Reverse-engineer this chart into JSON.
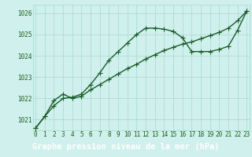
{
  "title": "Graphe pression niveau de la mer (hPa)",
  "background_color": "#cff0ec",
  "grid_color": "#a8d8cc",
  "line_color": "#1a5c2a",
  "xlim": [
    -0.3,
    23.3
  ],
  "ylim": [
    1020.5,
    1026.4
  ],
  "xticks": [
    0,
    1,
    2,
    3,
    4,
    5,
    6,
    7,
    8,
    9,
    10,
    11,
    12,
    13,
    14,
    15,
    16,
    17,
    18,
    19,
    20,
    21,
    22,
    23
  ],
  "yticks": [
    1021,
    1022,
    1023,
    1024,
    1025,
    1026
  ],
  "series1_x": [
    0,
    1,
    2,
    3,
    4,
    5,
    6,
    7,
    8,
    9,
    10,
    11,
    12,
    13,
    14,
    15,
    16,
    17,
    18,
    19,
    20,
    21,
    22,
    23
  ],
  "series1_y": [
    1020.6,
    1021.15,
    1021.65,
    1022.0,
    1022.05,
    1022.2,
    1022.65,
    1023.2,
    1023.8,
    1024.2,
    1024.6,
    1025.0,
    1025.3,
    1025.3,
    1025.25,
    1025.15,
    1024.85,
    1024.2,
    1024.2,
    1024.2,
    1024.3,
    1024.45,
    1025.2,
    1026.1
  ],
  "series2_x": [
    0,
    1,
    2,
    3,
    4,
    5,
    6,
    7,
    8,
    9,
    10,
    11,
    12,
    13,
    14,
    15,
    16,
    17,
    18,
    19,
    20,
    21,
    22,
    23
  ],
  "series2_y": [
    1020.6,
    1021.15,
    1021.9,
    1022.2,
    1022.0,
    1022.1,
    1022.4,
    1022.65,
    1022.9,
    1023.15,
    1023.4,
    1023.6,
    1023.85,
    1024.05,
    1024.25,
    1024.4,
    1024.55,
    1024.65,
    1024.8,
    1024.95,
    1025.1,
    1025.3,
    1025.65,
    1026.1
  ],
  "marker": "+",
  "markersize": 4,
  "linewidth": 1.0,
  "title_fontsize": 7.5,
  "tick_fontsize": 5.5,
  "tick_color": "#1a5c1a",
  "title_fg": "white",
  "title_bg": "#2d7a2d",
  "title_bar_height": 0.13
}
